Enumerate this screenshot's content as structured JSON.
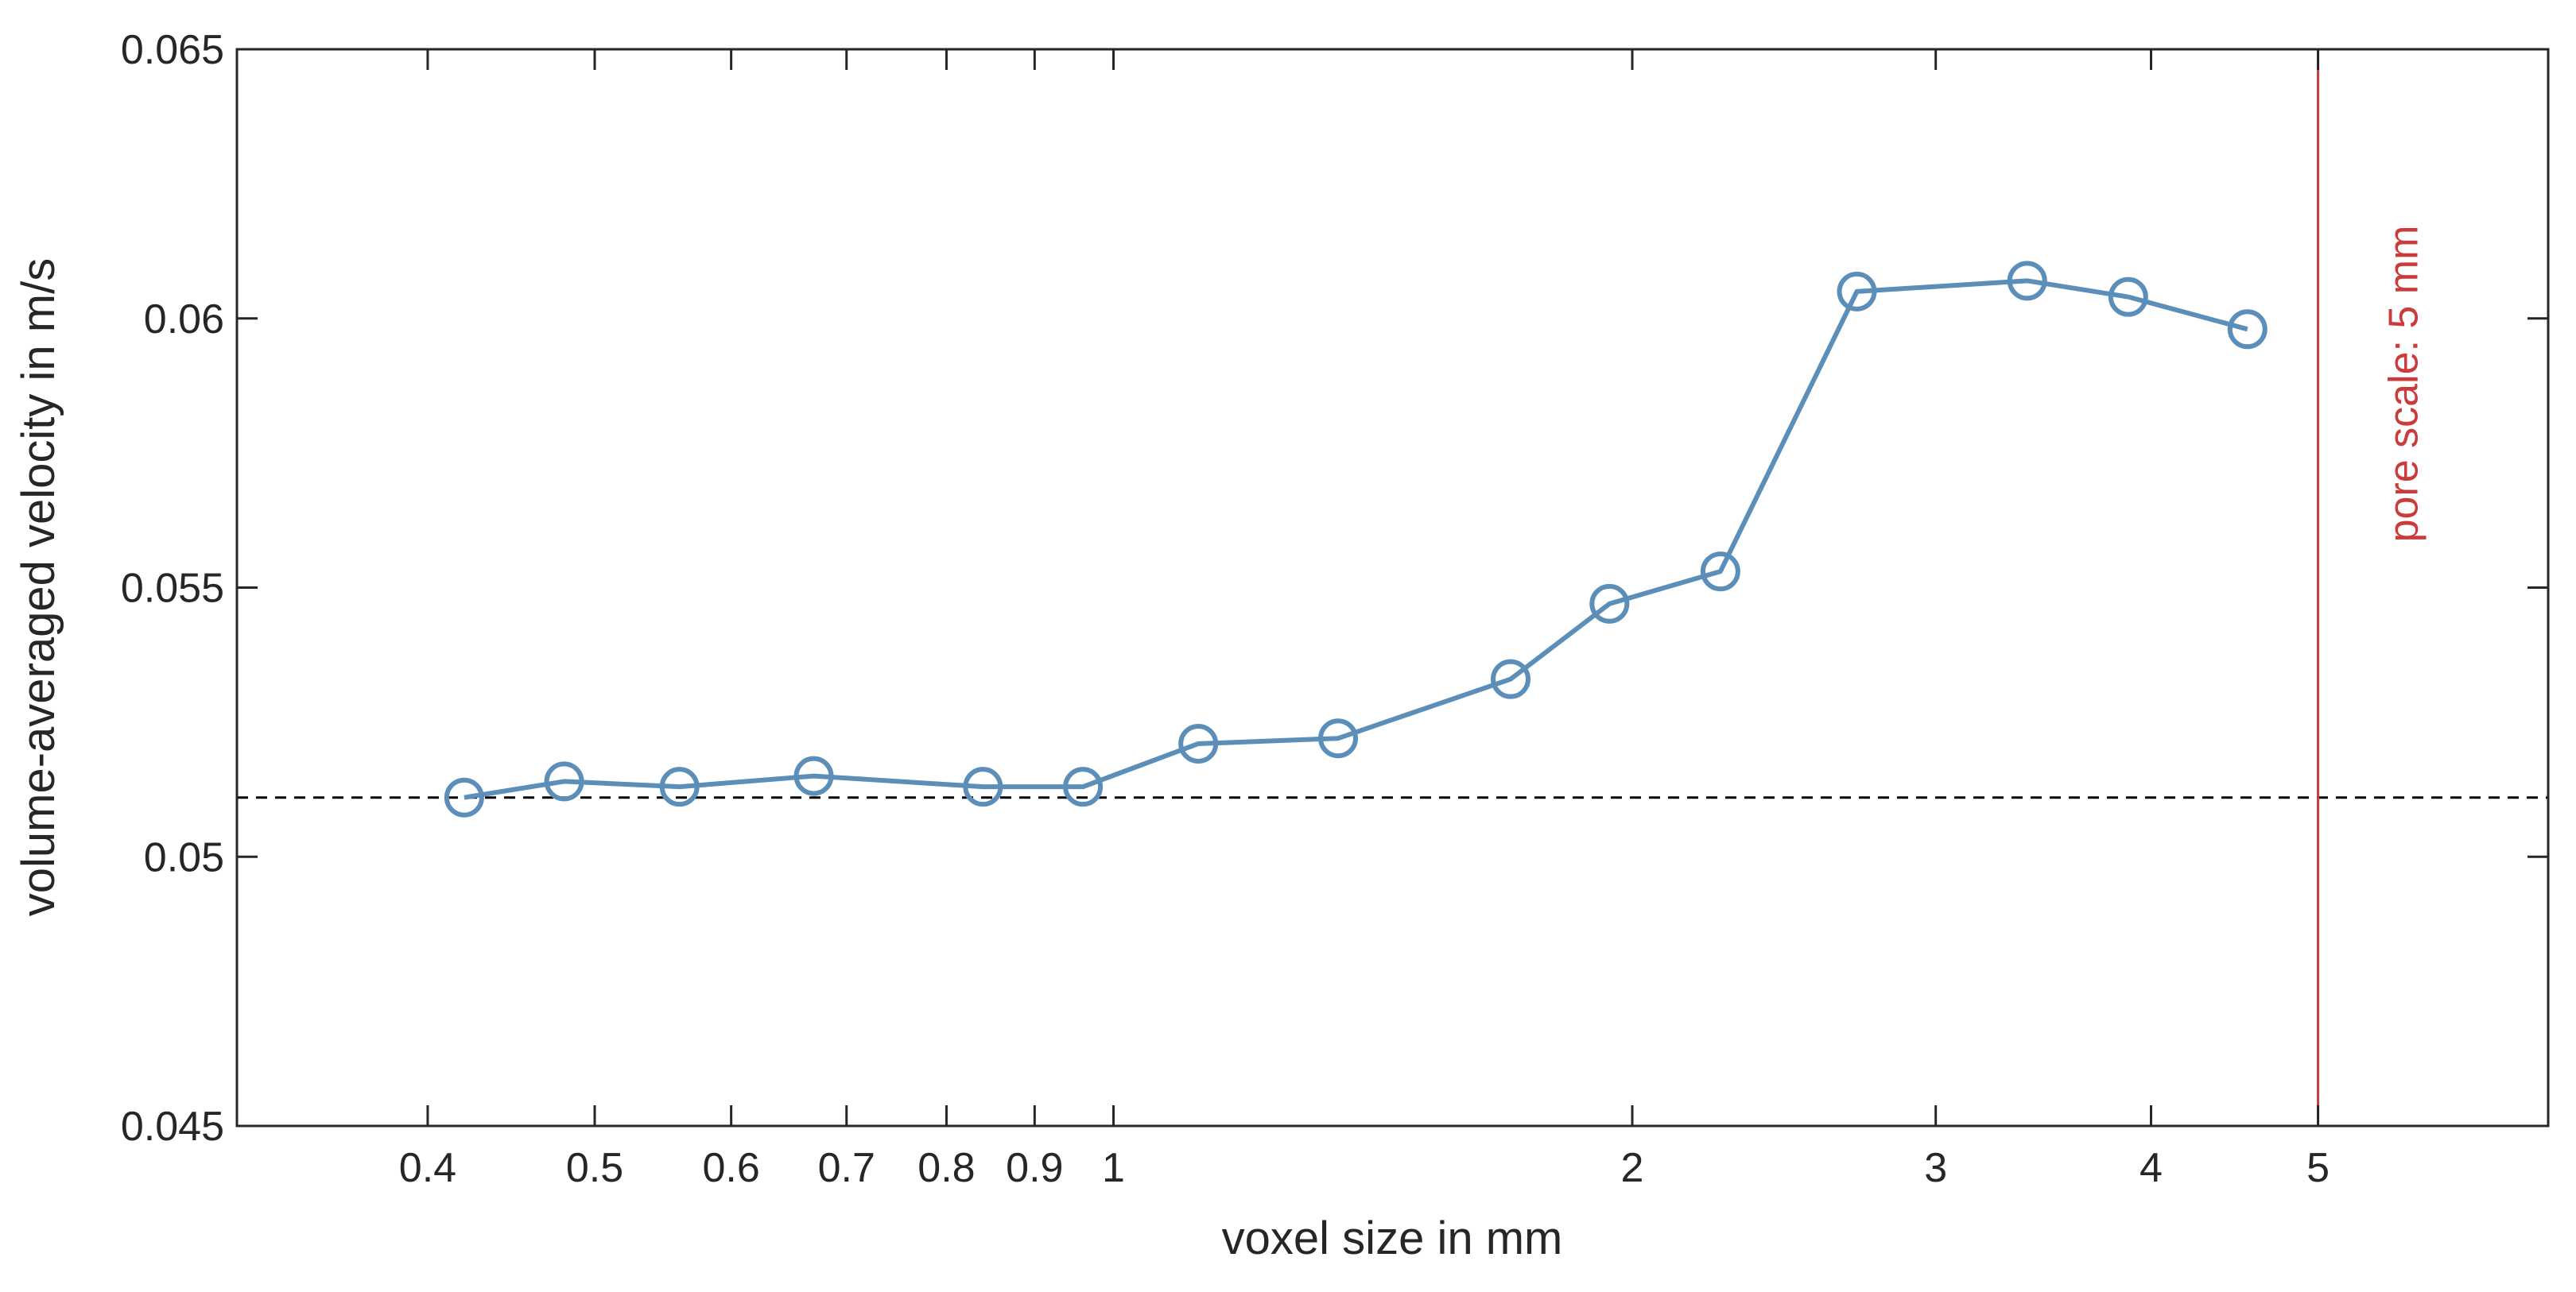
{
  "chart_data": {
    "type": "line",
    "xlabel": "voxel size in mm",
    "ylabel": "volume-averaged velocity in m/s",
    "xscale": "log",
    "xlim": [
      0.31,
      6.8
    ],
    "ylim": [
      0.045,
      0.065
    ],
    "grid": false,
    "legend": "none",
    "xticks": [
      {
        "value": 0.4,
        "label": "0.4"
      },
      {
        "value": 0.5,
        "label": "0.5"
      },
      {
        "value": 0.6,
        "label": "0.6"
      },
      {
        "value": 0.7,
        "label": "0.7"
      },
      {
        "value": 0.8,
        "label": "0.8"
      },
      {
        "value": 0.9,
        "label": "0.9"
      },
      {
        "value": 1,
        "label": "1"
      },
      {
        "value": 2,
        "label": "2"
      },
      {
        "value": 3,
        "label": "3"
      },
      {
        "value": 4,
        "label": "4"
      },
      {
        "value": 5,
        "label": "5"
      }
    ],
    "yticks": [
      {
        "value": 0.045,
        "label": "0.045"
      },
      {
        "value": 0.05,
        "label": "0.05"
      },
      {
        "value": 0.055,
        "label": "0.055"
      },
      {
        "value": 0.06,
        "label": "0.06"
      },
      {
        "value": 0.065,
        "label": "0.065"
      }
    ],
    "series": [
      {
        "color": "#5b8fb9",
        "marker": "open-circle",
        "x": [
          0.42,
          0.48,
          0.56,
          0.67,
          0.84,
          0.96,
          1.12,
          1.35,
          1.7,
          1.94,
          2.25,
          2.7,
          3.39,
          3.88,
          4.55
        ],
        "y": [
          0.0511,
          0.0514,
          0.0513,
          0.0515,
          0.0513,
          0.0513,
          0.0521,
          0.0522,
          0.0533,
          0.0547,
          0.0553,
          0.0605,
          0.0607,
          0.0604,
          0.0598
        ]
      }
    ],
    "reference_lines": [
      {
        "orientation": "horizontal",
        "y": 0.0511,
        "style": "dashed",
        "color": "#000000"
      },
      {
        "orientation": "vertical",
        "x": 5,
        "style": "solid",
        "color": "#cc3b3b",
        "label": "pore scale: 5 mm"
      }
    ]
  }
}
